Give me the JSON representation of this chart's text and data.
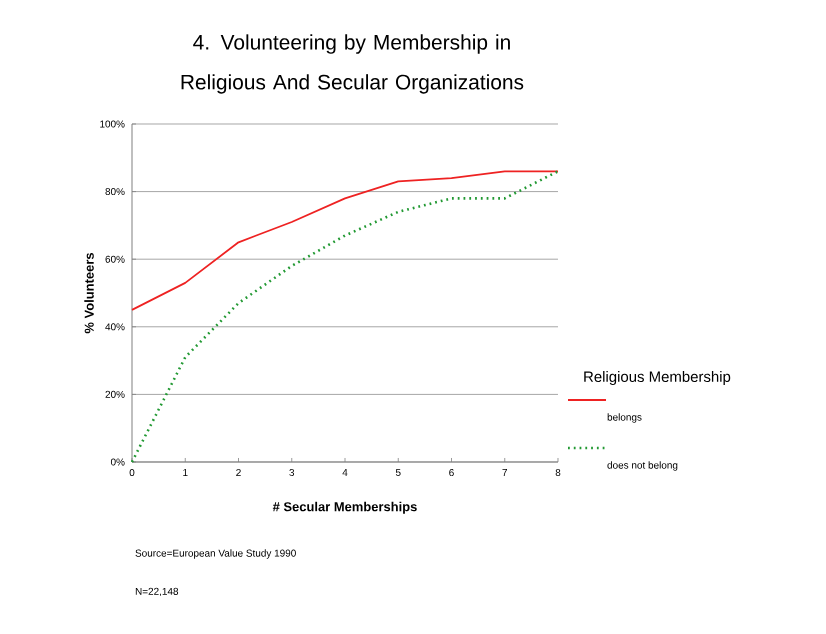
{
  "chart_data": {
    "type": "line",
    "title": "4. Volunteering by Membership in Religious And Secular Organizations",
    "xlabel": "# Secular Memberships",
    "ylabel": "% Volunteers",
    "legend_title": "Religious Membership",
    "x": [
      0,
      1,
      2,
      3,
      4,
      5,
      6,
      7,
      8
    ],
    "series": [
      {
        "name": "belongs",
        "color": "#ee2222",
        "line_style": "solid",
        "values": [
          45,
          53,
          65,
          71,
          78,
          83,
          84,
          86,
          86
        ]
      },
      {
        "name": "does not belong",
        "color": "#229933",
        "line_style": "dotted",
        "values": [
          0,
          31,
          47,
          58,
          67,
          74,
          78,
          78,
          86
        ]
      }
    ],
    "xlim": [
      0,
      8
    ],
    "ylim": [
      0,
      100
    ],
    "xticks": [
      0,
      1,
      2,
      3,
      4,
      5,
      6,
      7,
      8
    ],
    "yticks": [
      {
        "value": 0,
        "label": "0%"
      },
      {
        "value": 20,
        "label": "20%"
      },
      {
        "value": 40,
        "label": "40%"
      },
      {
        "value": 60,
        "label": "60%"
      },
      {
        "value": 80,
        "label": "80%"
      },
      {
        "value": 100,
        "label": "100%"
      }
    ],
    "grid": "y",
    "legend": "right",
    "annotations": [
      "Source=European Value Study 1990",
      "N=22,148"
    ]
  }
}
